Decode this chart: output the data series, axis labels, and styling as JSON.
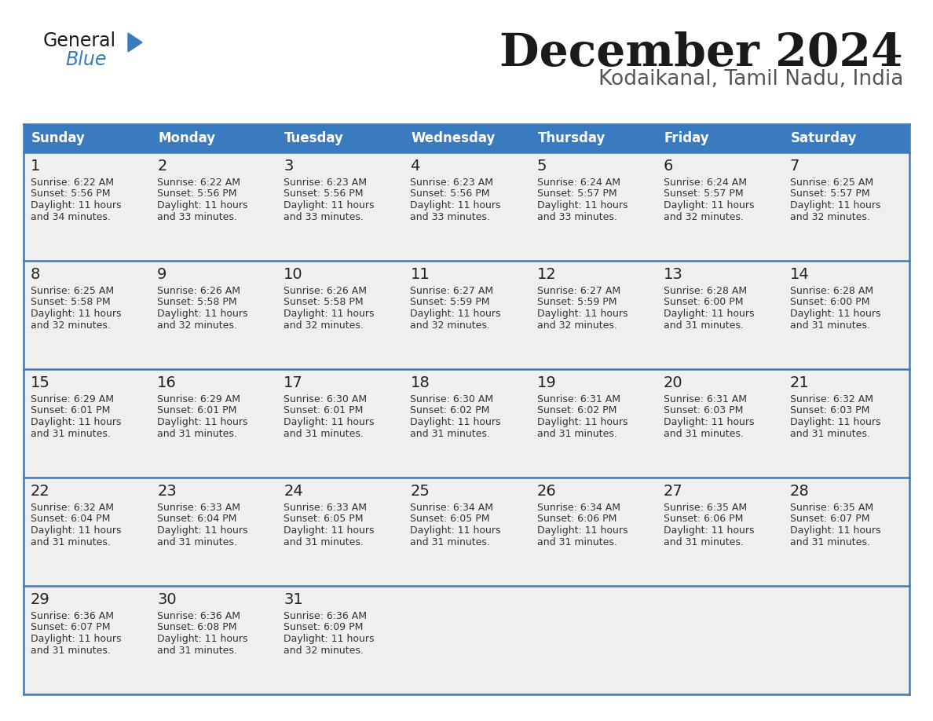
{
  "title": "December 2024",
  "subtitle": "Kodaikanal, Tamil Nadu, India",
  "header_color": "#3a7bbf",
  "header_text_color": "#ffffff",
  "day_names": [
    "Sunday",
    "Monday",
    "Tuesday",
    "Wednesday",
    "Thursday",
    "Friday",
    "Saturday"
  ],
  "bg_color": "#ffffff",
  "cell_bg_color": "#efefef",
  "text_color": "#333333",
  "border_color": "#3a7bbf",
  "days": [
    {
      "day": 1,
      "col": 0,
      "row": 0,
      "sunrise": "6:22 AM",
      "sunset": "5:56 PM",
      "daylight": "11 hours and 34 minutes."
    },
    {
      "day": 2,
      "col": 1,
      "row": 0,
      "sunrise": "6:22 AM",
      "sunset": "5:56 PM",
      "daylight": "11 hours and 33 minutes."
    },
    {
      "day": 3,
      "col": 2,
      "row": 0,
      "sunrise": "6:23 AM",
      "sunset": "5:56 PM",
      "daylight": "11 hours and 33 minutes."
    },
    {
      "day": 4,
      "col": 3,
      "row": 0,
      "sunrise": "6:23 AM",
      "sunset": "5:56 PM",
      "daylight": "11 hours and 33 minutes."
    },
    {
      "day": 5,
      "col": 4,
      "row": 0,
      "sunrise": "6:24 AM",
      "sunset": "5:57 PM",
      "daylight": "11 hours and 33 minutes."
    },
    {
      "day": 6,
      "col": 5,
      "row": 0,
      "sunrise": "6:24 AM",
      "sunset": "5:57 PM",
      "daylight": "11 hours and 32 minutes."
    },
    {
      "day": 7,
      "col": 6,
      "row": 0,
      "sunrise": "6:25 AM",
      "sunset": "5:57 PM",
      "daylight": "11 hours and 32 minutes."
    },
    {
      "day": 8,
      "col": 0,
      "row": 1,
      "sunrise": "6:25 AM",
      "sunset": "5:58 PM",
      "daylight": "11 hours and 32 minutes."
    },
    {
      "day": 9,
      "col": 1,
      "row": 1,
      "sunrise": "6:26 AM",
      "sunset": "5:58 PM",
      "daylight": "11 hours and 32 minutes."
    },
    {
      "day": 10,
      "col": 2,
      "row": 1,
      "sunrise": "6:26 AM",
      "sunset": "5:58 PM",
      "daylight": "11 hours and 32 minutes."
    },
    {
      "day": 11,
      "col": 3,
      "row": 1,
      "sunrise": "6:27 AM",
      "sunset": "5:59 PM",
      "daylight": "11 hours and 32 minutes."
    },
    {
      "day": 12,
      "col": 4,
      "row": 1,
      "sunrise": "6:27 AM",
      "sunset": "5:59 PM",
      "daylight": "11 hours and 32 minutes."
    },
    {
      "day": 13,
      "col": 5,
      "row": 1,
      "sunrise": "6:28 AM",
      "sunset": "6:00 PM",
      "daylight": "11 hours and 31 minutes."
    },
    {
      "day": 14,
      "col": 6,
      "row": 1,
      "sunrise": "6:28 AM",
      "sunset": "6:00 PM",
      "daylight": "11 hours and 31 minutes."
    },
    {
      "day": 15,
      "col": 0,
      "row": 2,
      "sunrise": "6:29 AM",
      "sunset": "6:01 PM",
      "daylight": "11 hours and 31 minutes."
    },
    {
      "day": 16,
      "col": 1,
      "row": 2,
      "sunrise": "6:29 AM",
      "sunset": "6:01 PM",
      "daylight": "11 hours and 31 minutes."
    },
    {
      "day": 17,
      "col": 2,
      "row": 2,
      "sunrise": "6:30 AM",
      "sunset": "6:01 PM",
      "daylight": "11 hours and 31 minutes."
    },
    {
      "day": 18,
      "col": 3,
      "row": 2,
      "sunrise": "6:30 AM",
      "sunset": "6:02 PM",
      "daylight": "11 hours and 31 minutes."
    },
    {
      "day": 19,
      "col": 4,
      "row": 2,
      "sunrise": "6:31 AM",
      "sunset": "6:02 PM",
      "daylight": "11 hours and 31 minutes."
    },
    {
      "day": 20,
      "col": 5,
      "row": 2,
      "sunrise": "6:31 AM",
      "sunset": "6:03 PM",
      "daylight": "11 hours and 31 minutes."
    },
    {
      "day": 21,
      "col": 6,
      "row": 2,
      "sunrise": "6:32 AM",
      "sunset": "6:03 PM",
      "daylight": "11 hours and 31 minutes."
    },
    {
      "day": 22,
      "col": 0,
      "row": 3,
      "sunrise": "6:32 AM",
      "sunset": "6:04 PM",
      "daylight": "11 hours and 31 minutes."
    },
    {
      "day": 23,
      "col": 1,
      "row": 3,
      "sunrise": "6:33 AM",
      "sunset": "6:04 PM",
      "daylight": "11 hours and 31 minutes."
    },
    {
      "day": 24,
      "col": 2,
      "row": 3,
      "sunrise": "6:33 AM",
      "sunset": "6:05 PM",
      "daylight": "11 hours and 31 minutes."
    },
    {
      "day": 25,
      "col": 3,
      "row": 3,
      "sunrise": "6:34 AM",
      "sunset": "6:05 PM",
      "daylight": "11 hours and 31 minutes."
    },
    {
      "day": 26,
      "col": 4,
      "row": 3,
      "sunrise": "6:34 AM",
      "sunset": "6:06 PM",
      "daylight": "11 hours and 31 minutes."
    },
    {
      "day": 27,
      "col": 5,
      "row": 3,
      "sunrise": "6:35 AM",
      "sunset": "6:06 PM",
      "daylight": "11 hours and 31 minutes."
    },
    {
      "day": 28,
      "col": 6,
      "row": 3,
      "sunrise": "6:35 AM",
      "sunset": "6:07 PM",
      "daylight": "11 hours and 31 minutes."
    },
    {
      "day": 29,
      "col": 0,
      "row": 4,
      "sunrise": "6:36 AM",
      "sunset": "6:07 PM",
      "daylight": "11 hours and 31 minutes."
    },
    {
      "day": 30,
      "col": 1,
      "row": 4,
      "sunrise": "6:36 AM",
      "sunset": "6:08 PM",
      "daylight": "11 hours and 31 minutes."
    },
    {
      "day": 31,
      "col": 2,
      "row": 4,
      "sunrise": "6:36 AM",
      "sunset": "6:09 PM",
      "daylight": "11 hours and 32 minutes."
    }
  ],
  "num_rows": 5,
  "logo_text_general": "General",
  "logo_text_blue": "Blue",
  "logo_color_general": "#1a1a1a",
  "logo_color_blue": "#3a7bbf",
  "logo_triangle_color": "#3a7bbf"
}
